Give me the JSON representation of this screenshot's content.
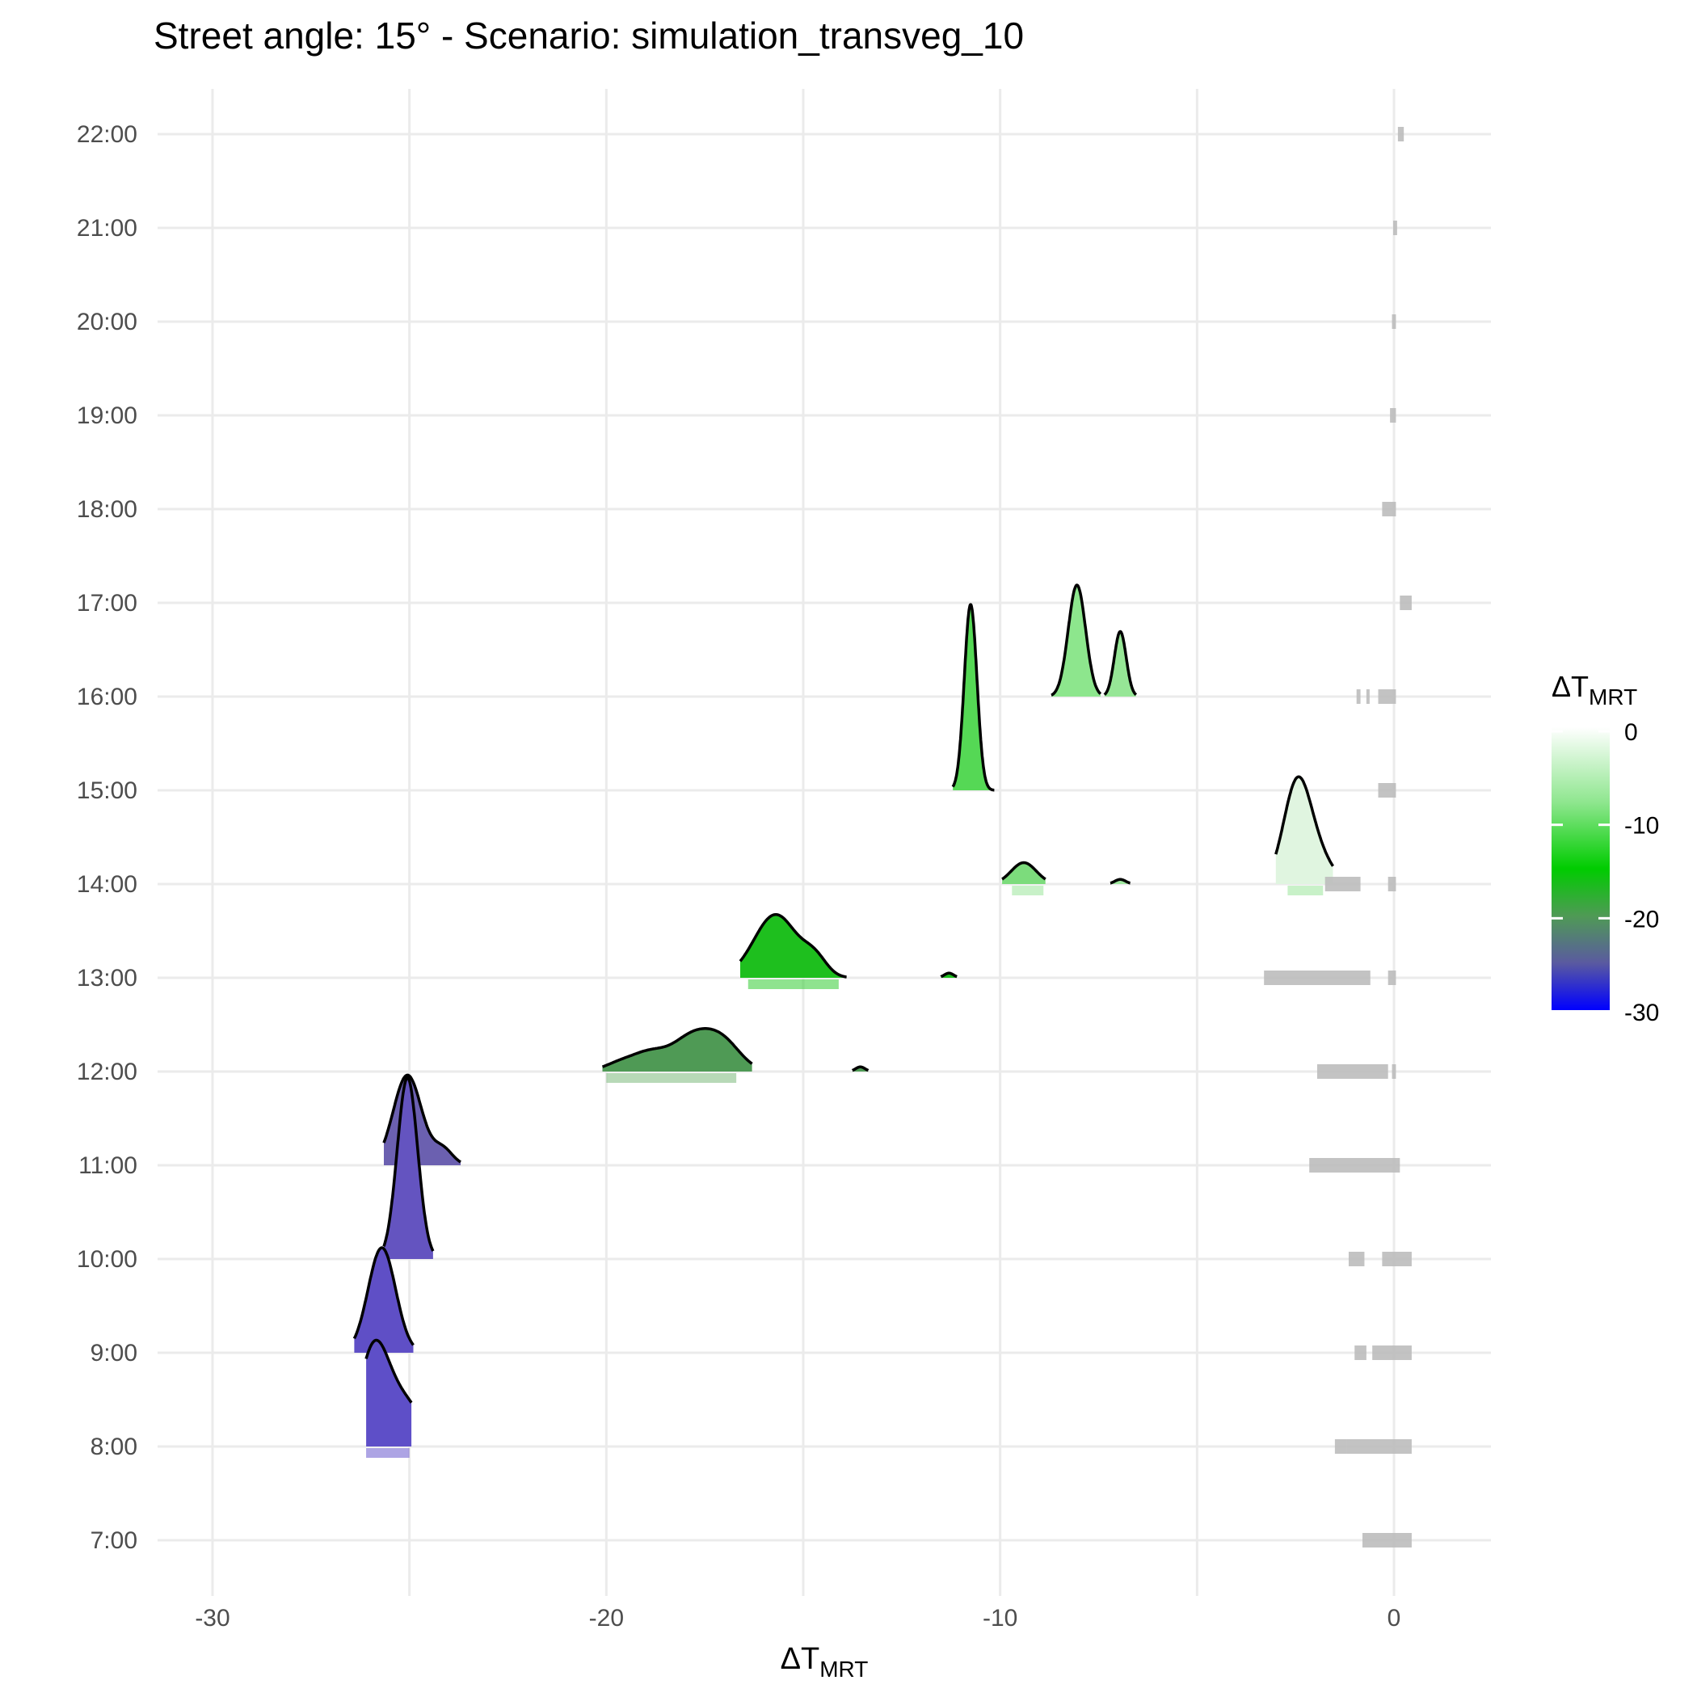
{
  "chart_data": {
    "type": "ridgeline",
    "title": "Street angle: 15° - Scenario: simulation_transveg_10",
    "xlabel": {
      "main": "ΔT",
      "sub": "MRT"
    },
    "ylabel": "",
    "xlim": [
      -31,
      2.5
    ],
    "x_ticks": [
      -30,
      -20,
      -10,
      0
    ],
    "x_tick_labels": [
      "-30",
      "-20",
      "-10",
      "0"
    ],
    "x_minor": [
      -25,
      -15,
      -5
    ],
    "y_categories": [
      "7:00",
      "8:00",
      "9:00",
      "10:00",
      "11:00",
      "12:00",
      "13:00",
      "14:00",
      "15:00",
      "16:00",
      "17:00",
      "18:00",
      "19:00",
      "20:00",
      "21:00",
      "22:00"
    ],
    "grid": true,
    "legend": {
      "title": {
        "main": "ΔT",
        "sub": "MRT"
      },
      "position": "right",
      "range": [
        -30,
        0
      ],
      "ticks": [
        0,
        -10,
        -20,
        -30
      ],
      "tick_labels": [
        "0",
        "-10",
        "-20",
        "-30"
      ],
      "color_stops": [
        {
          "value": 0,
          "color": "#ffffff"
        },
        {
          "value": -8,
          "color": "#8ee68e"
        },
        {
          "value": -15,
          "color": "#00cc00"
        },
        {
          "value": -20,
          "color": "#4f9a55"
        },
        {
          "value": -25,
          "color": "#5a5aa0"
        },
        {
          "value": -30,
          "color": "#0000ff"
        }
      ]
    },
    "ridges": [
      {
        "hour": "8:00",
        "fill": "#5e4fc8",
        "peaks": [
          {
            "center": -25.9,
            "sd": 0.38,
            "height": 1.04
          },
          {
            "center": -25.1,
            "sd": 0.45,
            "height": 0.45
          }
        ],
        "range": [
          -26.1,
          -24.95
        ]
      },
      {
        "hour": "9:00",
        "fill": "#5f4fc6",
        "peaks": [
          {
            "center": -25.7,
            "sd": 0.35,
            "height": 1.13
          }
        ],
        "range": [
          -26.4,
          -24.9
        ]
      },
      {
        "hour": "10:00",
        "fill": "#6454c0",
        "peaks": [
          {
            "center": -25.05,
            "sd": 0.26,
            "height": 1.95
          }
        ],
        "range": [
          -25.65,
          -24.4
        ]
      },
      {
        "hour": "11:00",
        "fill": "#6b60b0",
        "peaks": [
          {
            "center": -25.05,
            "sd": 0.36,
            "height": 0.97
          },
          {
            "center": -24.15,
            "sd": 0.25,
            "height": 0.17
          }
        ],
        "range": [
          -25.65,
          -23.7
        ]
      },
      {
        "hour": "12:00",
        "fill": "#4f9a55",
        "peaks": [
          {
            "center": -19.6,
            "sd": 0.42,
            "height": 0.1
          },
          {
            "center": -18.9,
            "sd": 0.4,
            "height": 0.16
          },
          {
            "center": -17.8,
            "sd": 0.55,
            "height": 0.38
          },
          {
            "center": -17.0,
            "sd": 0.45,
            "height": 0.25
          }
        ],
        "range": [
          -20.1,
          -16.3
        ]
      },
      {
        "hour": "12:00",
        "fill": "#4f9a55",
        "peaks": [
          {
            "center": -13.55,
            "sd": 0.12,
            "height": 0.05
          }
        ],
        "range": [
          -13.75,
          -13.35
        ]
      },
      {
        "hour": "13:00",
        "fill": "#1ebf1e",
        "peaks": [
          {
            "center": -15.7,
            "sd": 0.55,
            "height": 0.68
          },
          {
            "center": -14.7,
            "sd": 0.3,
            "height": 0.18
          }
        ],
        "range": [
          -16.6,
          -13.9
        ]
      },
      {
        "hour": "13:00",
        "fill": "#1ebf1e",
        "peaks": [
          {
            "center": -11.3,
            "sd": 0.12,
            "height": 0.05
          }
        ],
        "range": [
          -11.5,
          -11.1
        ]
      },
      {
        "hour": "14:00",
        "fill": "#7cdc7c",
        "peaks": [
          {
            "center": -9.4,
            "sd": 0.32,
            "height": 0.23
          }
        ],
        "range": [
          -9.95,
          -8.85
        ]
      },
      {
        "hour": "14:00",
        "fill": "#a0e8a0",
        "peaks": [
          {
            "center": -6.95,
            "sd": 0.14,
            "height": 0.05
          }
        ],
        "range": [
          -7.2,
          -6.7
        ]
      },
      {
        "hour": "14:00",
        "fill": "#e0f5e0",
        "peaks": [
          {
            "center": -2.45,
            "sd": 0.35,
            "height": 1.1
          },
          {
            "center": -1.85,
            "sd": 0.35,
            "height": 0.22
          }
        ],
        "range": [
          -3.0,
          -1.55
        ]
      },
      {
        "hour": "15:00",
        "fill": "#55d855",
        "peaks": [
          {
            "center": -10.75,
            "sd": 0.16,
            "height": 2.0
          }
        ],
        "range": [
          -11.2,
          -10.15
        ]
      },
      {
        "hour": "16:00",
        "fill": "#8de68d",
        "peaks": [
          {
            "center": -8.05,
            "sd": 0.22,
            "height": 1.2
          }
        ],
        "range": [
          -8.7,
          -7.45
        ]
      },
      {
        "hour": "16:00",
        "fill": "#96e696",
        "peaks": [
          {
            "center": -6.95,
            "sd": 0.15,
            "height": 0.7
          }
        ],
        "range": [
          -7.35,
          -6.55
        ]
      }
    ],
    "rug": [
      {
        "hour": "7:00",
        "color": "#bdbdbd",
        "ranges": [
          [
            -0.8,
            0.45
          ]
        ]
      },
      {
        "hour": "8:00",
        "color": "#bdbdbd",
        "ranges": [
          [
            -1.5,
            -1.2
          ],
          [
            -1.2,
            0.45
          ]
        ]
      },
      {
        "hour": "8:00",
        "color": "#6a5acd",
        "ranges": [
          [
            -26.1,
            -25.0
          ]
        ]
      },
      {
        "hour": "9:00",
        "color": "#bdbdbd",
        "ranges": [
          [
            -1.0,
            -0.7
          ],
          [
            -0.55,
            0.45
          ]
        ]
      },
      {
        "hour": "10:00",
        "color": "#bdbdbd",
        "ranges": [
          [
            -1.15,
            -0.75
          ],
          [
            -0.3,
            0.45
          ]
        ]
      },
      {
        "hour": "11:00",
        "color": "#bdbdbd",
        "ranges": [
          [
            -2.15,
            0.15
          ]
        ]
      },
      {
        "hour": "12:00",
        "color": "#bdbdbd",
        "ranges": [
          [
            -1.95,
            -0.15
          ],
          [
            -0.05,
            0.05
          ]
        ]
      },
      {
        "hour": "12:00",
        "color": "#7cb97c",
        "ranges": [
          [
            -20.0,
            -16.7
          ]
        ]
      },
      {
        "hour": "13:00",
        "color": "#bdbdbd",
        "ranges": [
          [
            -3.3,
            -0.6
          ],
          [
            -0.15,
            0.05
          ]
        ]
      },
      {
        "hour": "13:00",
        "color": "#33cc33",
        "ranges": [
          [
            -16.4,
            -14.1
          ]
        ]
      },
      {
        "hour": "14:00",
        "color": "#bdbdbd",
        "ranges": [
          [
            -1.75,
            -0.85
          ],
          [
            -0.15,
            0.05
          ]
        ]
      },
      {
        "hour": "14:00",
        "color": "#9be59b",
        "ranges": [
          [
            -9.7,
            -8.9
          ],
          [
            -2.7,
            -1.8
          ]
        ]
      },
      {
        "hour": "15:00",
        "color": "#bdbdbd",
        "ranges": [
          [
            -0.4,
            0.05
          ]
        ]
      },
      {
        "hour": "16:00",
        "color": "#bdbdbd",
        "ranges": [
          [
            -0.95,
            -0.85
          ],
          [
            -0.7,
            -0.65
          ],
          [
            -0.4,
            0.05
          ]
        ]
      },
      {
        "hour": "17:00",
        "color": "#bdbdbd",
        "ranges": [
          [
            0.15,
            0.45
          ]
        ]
      },
      {
        "hour": "18:00",
        "color": "#bdbdbd",
        "ranges": [
          [
            -0.3,
            0.05
          ]
        ]
      },
      {
        "hour": "19:00",
        "color": "#bdbdbd",
        "ranges": [
          [
            -0.1,
            0.05
          ]
        ]
      },
      {
        "hour": "20:00",
        "color": "#bdbdbd",
        "ranges": [
          [
            -0.05,
            0.05
          ]
        ]
      },
      {
        "hour": "21:00",
        "color": "#bdbdbd",
        "ranges": [
          [
            -0.02,
            0.08
          ]
        ]
      },
      {
        "hour": "22:00",
        "color": "#bdbdbd",
        "ranges": [
          [
            0.1,
            0.25
          ]
        ]
      }
    ]
  }
}
